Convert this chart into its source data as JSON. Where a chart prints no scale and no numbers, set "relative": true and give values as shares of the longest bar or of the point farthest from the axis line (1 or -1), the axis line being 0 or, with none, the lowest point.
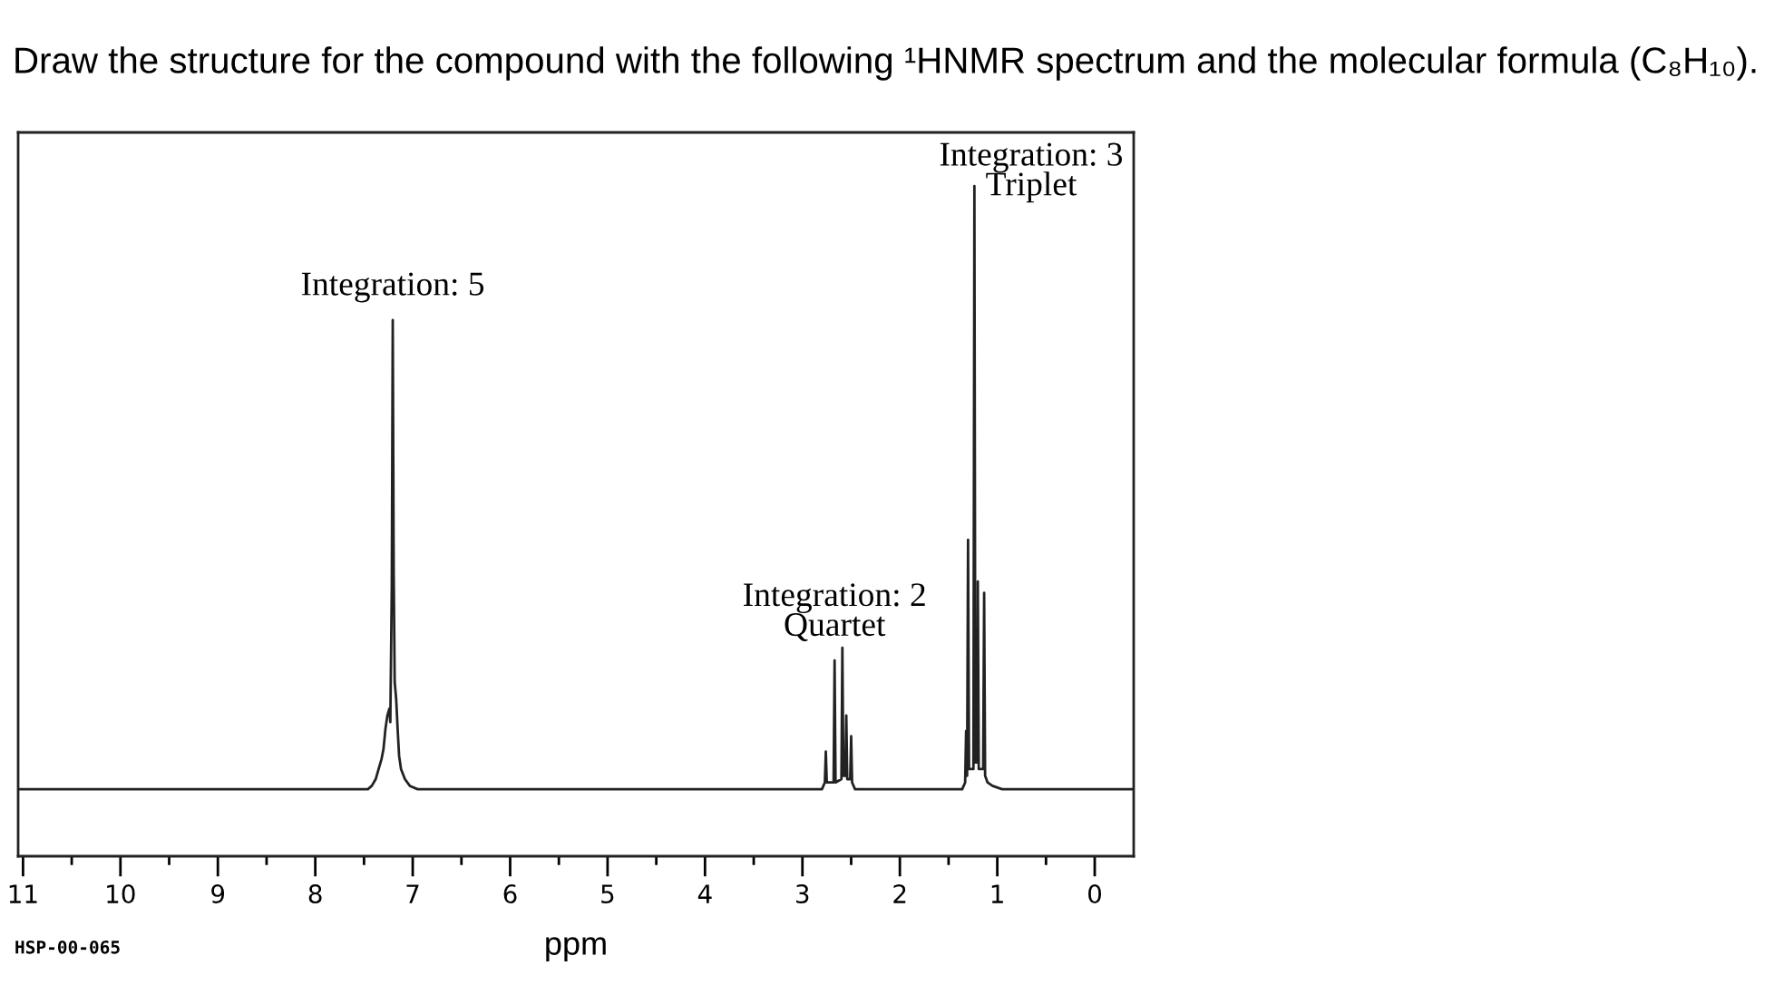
{
  "chart_data": {
    "type": "line",
    "relative": true,
    "title": "Draw the structure for the compound with the following ¹HNMR spectrum and the molecular formula (C₈H₁₀).",
    "xlabel": "ppm",
    "color": "#222222",
    "xlim": [
      11.05,
      -0.4
    ],
    "xticks": [
      11,
      {
        "value": 10.5,
        "label": null
      },
      10,
      {
        "value": 9.5,
        "label": null
      },
      9,
      {
        "value": 8.5,
        "label": null
      },
      8,
      {
        "value": 7.5,
        "label": null
      },
      7,
      {
        "value": 6.5,
        "label": null
      },
      6,
      {
        "value": 5.5,
        "label": null
      },
      5,
      {
        "value": 4.5,
        "label": null
      },
      4,
      {
        "value": 3.5,
        "label": null
      },
      3,
      {
        "value": 2.5,
        "label": null
      },
      2,
      {
        "value": 1.5,
        "label": null
      },
      1,
      {
        "value": 0.5,
        "label": null
      },
      0
    ],
    "x": [
      11.05,
      7.46,
      7.42,
      7.38,
      7.35,
      7.32,
      7.3,
      7.28,
      7.26,
      7.24,
      7.23,
      7.215,
      7.205,
      7.195,
      7.185,
      7.17,
      7.155,
      7.14,
      7.12,
      7.08,
      7.03,
      6.95,
      2.8,
      2.77,
      2.76,
      2.75,
      2.68,
      2.67,
      2.66,
      2.6,
      2.59,
      2.58,
      2.56,
      2.55,
      2.54,
      2.51,
      2.5,
      2.49,
      2.46,
      1.36,
      1.33,
      1.32,
      1.31,
      1.3,
      1.29,
      1.245,
      1.235,
      1.225,
      1.205,
      1.2,
      1.19,
      1.145,
      1.135,
      1.125,
      1.1,
      1.05,
      0.95,
      -0.4
    ],
    "values": [
      0.1,
      0.1,
      0.105,
      0.115,
      0.13,
      0.145,
      0.16,
      0.19,
      0.21,
      0.22,
      0.2,
      0.4,
      0.8,
      0.42,
      0.26,
      0.235,
      0.19,
      0.15,
      0.13,
      0.115,
      0.105,
      0.1,
      0.1,
      0.11,
      0.156,
      0.11,
      0.11,
      0.292,
      0.11,
      0.115,
      0.311,
      0.12,
      0.12,
      0.21,
      0.115,
      0.115,
      0.179,
      0.11,
      0.1,
      0.1,
      0.11,
      0.187,
      0.12,
      0.472,
      0.13,
      0.13,
      1.0,
      0.14,
      0.14,
      0.41,
      0.13,
      0.13,
      0.393,
      0.12,
      0.11,
      0.105,
      0.1,
      0.1
    ],
    "annotations": [
      {
        "text": "Integration: 5",
        "x": 7.205,
        "y": 0.8
      },
      {
        "text": "Integration: 2\nQuartet",
        "x": 2.67,
        "y": 0.292
      },
      {
        "text": "Integration: 3\nTriplet",
        "x": 1.235,
        "y": 1.0
      },
      "HSP-00-065"
    ]
  }
}
